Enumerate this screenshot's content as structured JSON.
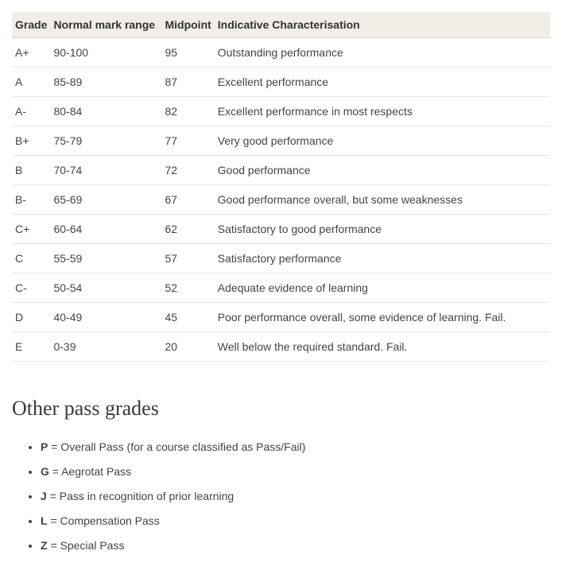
{
  "table": {
    "headers": [
      "Grade",
      "Normal mark range",
      "Midpoint",
      "Indicative Characterisation"
    ],
    "rows": [
      [
        "A+",
        "90-100",
        "95",
        "Outstanding performance"
      ],
      [
        "A",
        "85-89",
        "87",
        "Excellent performance"
      ],
      [
        "A-",
        "80-84",
        "82",
        "Excellent performance in most respects"
      ],
      [
        "B+",
        "75-79",
        "77",
        "Very good performance"
      ],
      [
        "B",
        "70-74",
        "72",
        "Good performance"
      ],
      [
        "B-",
        "65-69",
        "67",
        "Good performance overall, but some weaknesses"
      ],
      [
        "C+",
        "60-64",
        "62",
        "Satisfactory to good performance"
      ],
      [
        "C",
        "55-59",
        "57",
        "Satisfactory performance"
      ],
      [
        "C-",
        "50-54",
        "52",
        "Adequate evidence of learning"
      ],
      [
        "D",
        "40-49",
        "45",
        "Poor performance overall, some evidence of learning. Fail."
      ],
      [
        "E",
        "0-39",
        "20",
        "Well below the required standard. Fail."
      ]
    ]
  },
  "section": {
    "heading": "Other pass grades"
  },
  "passGrades": [
    {
      "code": "P",
      "desc": " = Overall Pass (for a course classified as Pass/Fail)"
    },
    {
      "code": "G",
      "desc": " = Aegrotat Pass"
    },
    {
      "code": "J",
      "desc": " = Pass in recognition of prior learning"
    },
    {
      "code": "L",
      "desc": " = Compensation Pass"
    },
    {
      "code": "Z",
      "desc": " = Special Pass"
    }
  ]
}
